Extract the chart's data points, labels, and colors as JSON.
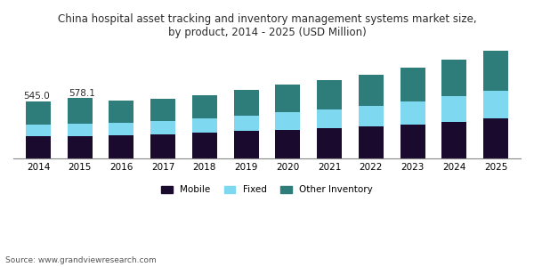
{
  "title": "China hospital asset tracking and inventory management systems market size,\nby product, 2014 - 2025 (USD Million)",
  "years": [
    2014,
    2015,
    2016,
    2017,
    2018,
    2019,
    2020,
    2021,
    2022,
    2023,
    2024,
    2025
  ],
  "mobile": [
    220,
    220,
    225,
    235,
    250,
    265,
    280,
    295,
    310,
    330,
    355,
    385
  ],
  "fixed": [
    110,
    115,
    118,
    125,
    135,
    150,
    165,
    175,
    195,
    215,
    240,
    265
  ],
  "other": [
    215,
    243,
    215,
    210,
    225,
    245,
    265,
    280,
    295,
    330,
    355,
    385
  ],
  "labels_2014_2015": [
    "545.0",
    "578.1"
  ],
  "color_mobile": "#1a0a2e",
  "color_fixed": "#7dd8f0",
  "color_other": "#2e7d7a",
  "color_bg": "#ffffff",
  "source_text": "Source: www.grandviewresearch.com",
  "title_color": "#2c2c2c",
  "legend_labels": [
    "Mobile",
    "Fixed",
    "Other Inventory"
  ],
  "bar_width": 0.6
}
